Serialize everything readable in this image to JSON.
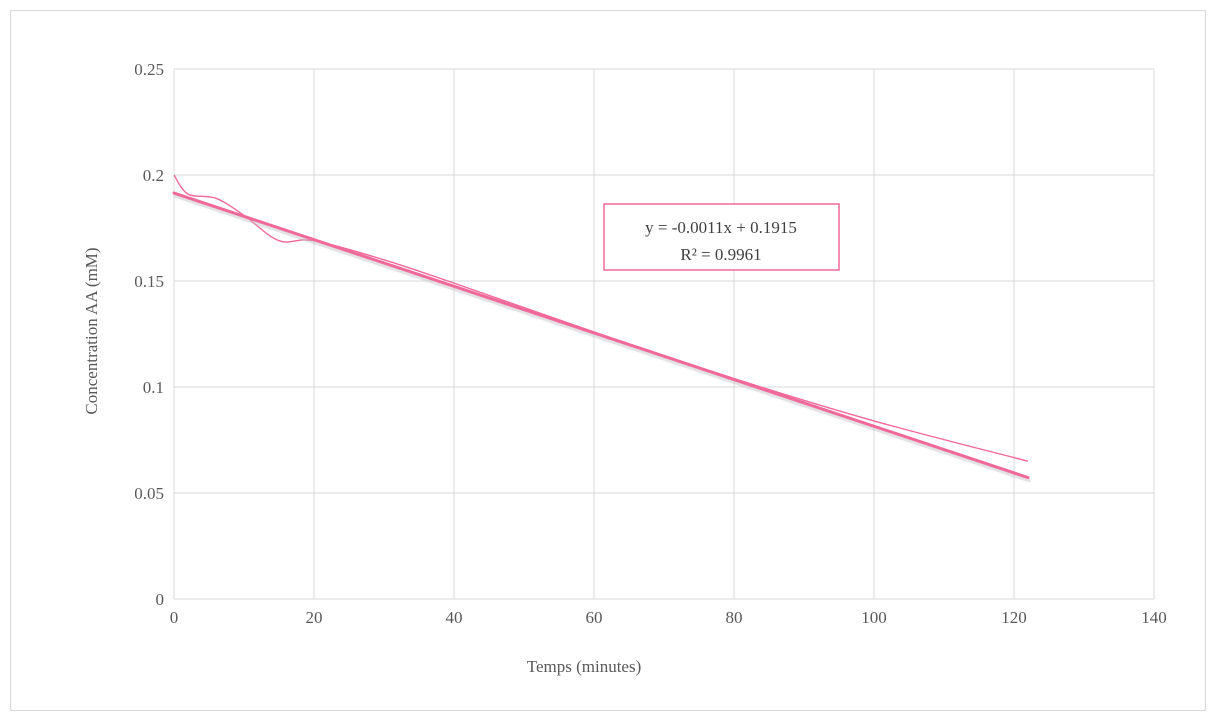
{
  "chart_data": {
    "type": "scatter",
    "xlabel": "Temps (minutes)",
    "ylabel": "Concentration AA (mM)",
    "xlim": [
      0,
      140
    ],
    "ylim": [
      0,
      0.25
    ],
    "x_ticks": [
      0,
      20,
      40,
      60,
      80,
      100,
      120,
      140
    ],
    "y_ticks": [
      0,
      0.05,
      0.1,
      0.15,
      0.2,
      0.25
    ],
    "x_tick_labels": [
      "0",
      "20",
      "40",
      "60",
      "80",
      "100",
      "120",
      "140"
    ],
    "y_tick_labels": [
      "0",
      "0.05",
      "0.1",
      "0.15",
      "0.2",
      "0.25"
    ],
    "grid": true,
    "series": [
      {
        "style": "smooth-line",
        "color": "#f0699a",
        "x": [
          0,
          2,
          6,
          10,
          15,
          20,
          30,
          40,
          60,
          80,
          100,
          122
        ],
        "y": [
          0.2,
          0.191,
          0.189,
          0.181,
          0.169,
          0.169,
          0.16,
          0.149,
          0.126,
          0.104,
          0.084,
          0.065
        ]
      }
    ],
    "trendline": {
      "type": "linear",
      "slope": -0.0011,
      "intercept": 0.1915,
      "x_range": [
        0,
        122
      ],
      "color": "#f0699a",
      "equation_text": "y = -0.0011x + 0.1915",
      "r2_text": "R² = 0.9961"
    }
  }
}
